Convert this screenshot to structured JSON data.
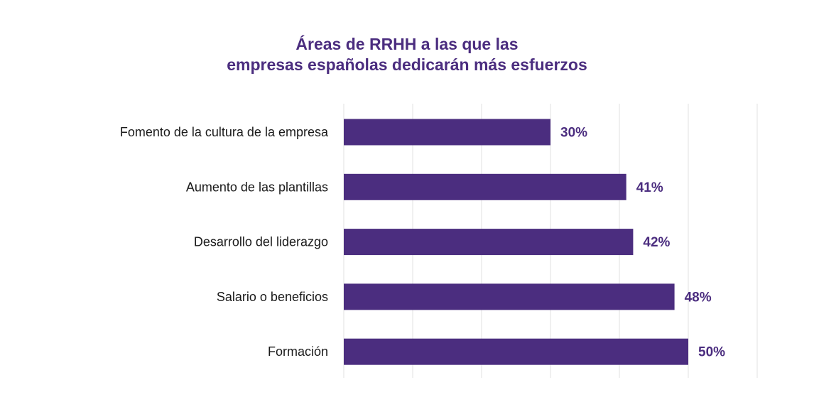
{
  "chart_data": {
    "type": "bar",
    "orientation": "horizontal",
    "title_lines": [
      "Áreas de RRHH a las que las",
      "empresas españolas dedicarán más esfuerzos"
    ],
    "categories": [
      "Fomento de la cultura de la empresa",
      "Aumento de las plantillas",
      "Desarrollo del liderazgo",
      "Salario o beneficios",
      "Formación"
    ],
    "values": [
      30,
      41,
      42,
      48,
      50
    ],
    "value_labels": [
      "30%",
      "41%",
      "42%",
      "48%",
      "50%"
    ],
    "xlim": [
      0,
      60
    ],
    "grid": true,
    "legend": "none",
    "colors": {
      "bar": "#4b2d7f",
      "title": "#4b2d7f",
      "value_label": "#4b2d7f",
      "grid": "#e2e2e2"
    }
  }
}
